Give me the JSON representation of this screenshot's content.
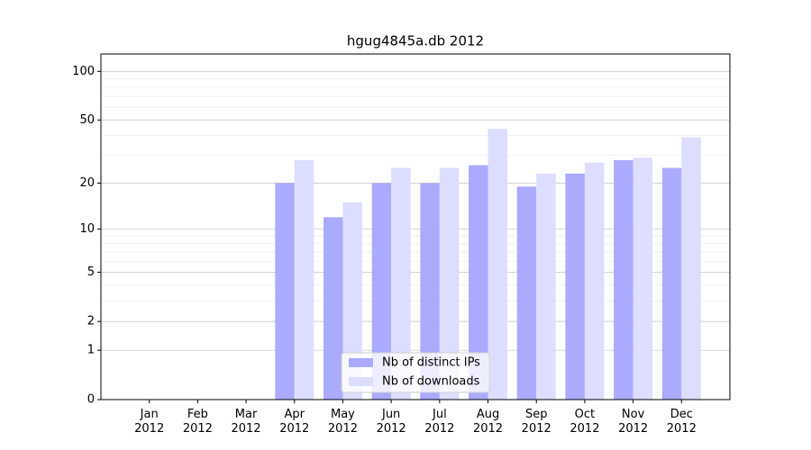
{
  "chart_data": {
    "type": "bar",
    "title": "hgug4845a.db 2012",
    "yscale": "log1p",
    "categories": [
      "Jan 2012",
      "Feb 2012",
      "Mar 2012",
      "Apr 2012",
      "May 2012",
      "Jun 2012",
      "Jul 2012",
      "Aug 2012",
      "Sep 2012",
      "Oct 2012",
      "Nov 2012",
      "Dec 2012"
    ],
    "series": [
      {
        "name": "Nb of distinct IPs",
        "color": "#aaaaff",
        "values": [
          0,
          0,
          0,
          20,
          12,
          20,
          20,
          26,
          19,
          23,
          28,
          25
        ]
      },
      {
        "name": "Nb of downloads",
        "color": "#ddddff",
        "values": [
          0,
          0,
          0,
          28,
          15,
          25,
          25,
          44,
          23,
          27,
          29,
          39
        ]
      }
    ],
    "ylim": [
      0,
      128
    ],
    "yticks": [
      0,
      1,
      2,
      5,
      10,
      20,
      50,
      100
    ],
    "minor_yticks": [
      3,
      4,
      6,
      7,
      8,
      9,
      30,
      40,
      60,
      70,
      80,
      90
    ],
    "grid": true,
    "legend": "lower center"
  }
}
